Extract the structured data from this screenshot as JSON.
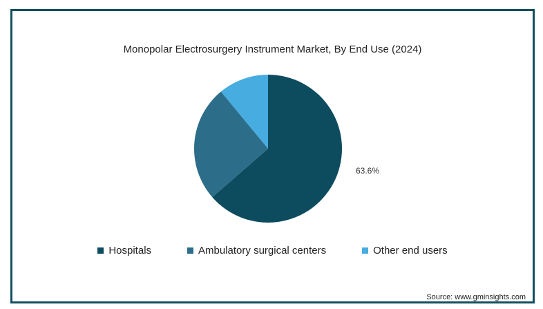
{
  "source": "Source: www.gminsights.com",
  "chart_data": {
    "type": "pie",
    "title": "Monopolar Electrosurgery Instrument Market, By End Use (2024)",
    "slices": [
      {
        "name": "Hospitals",
        "value": 63.6,
        "color": "#0d4b5f",
        "label": "63.6%"
      },
      {
        "name": "Ambulatory surgical centers",
        "value": 25.4,
        "color": "#2c6d89",
        "label": ""
      },
      {
        "name": "Other end users",
        "value": 11.0,
        "color": "#47ace0",
        "label": ""
      }
    ],
    "legend_position": "bottom"
  }
}
